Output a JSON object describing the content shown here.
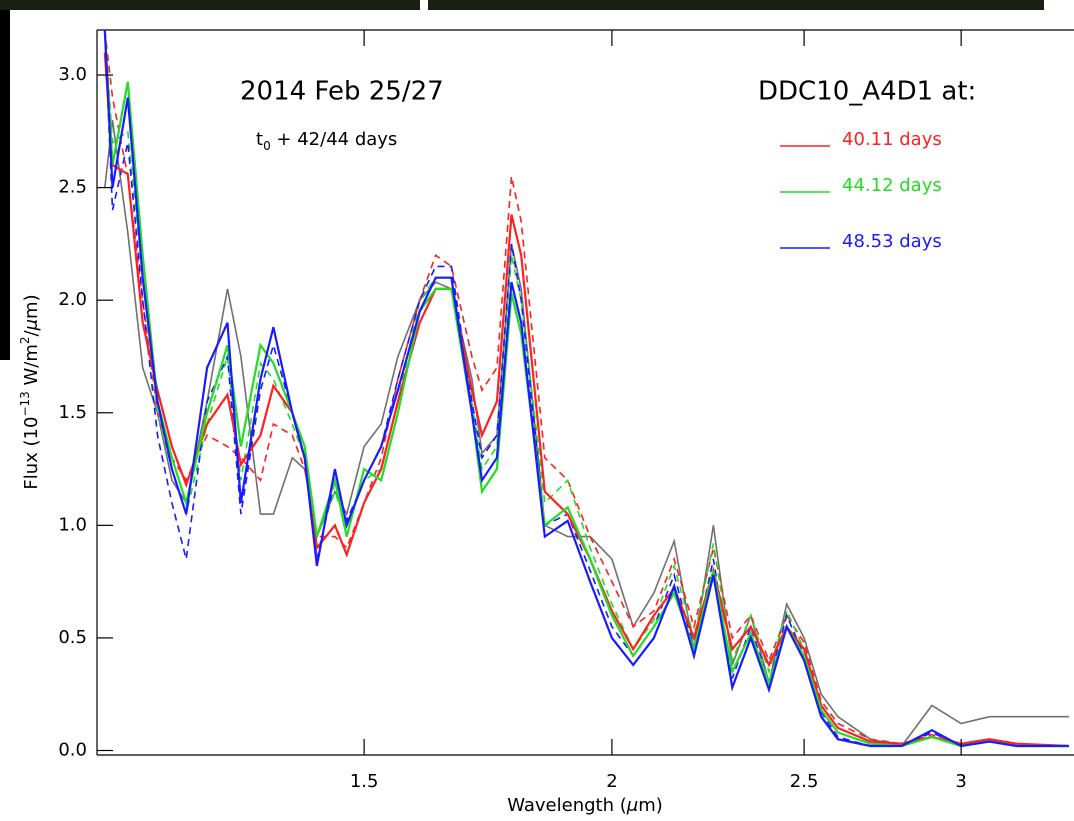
{
  "chart_data": {
    "type": "line",
    "title": "2014 Feb 25/27",
    "annotation": [
      "t",
      "0",
      " + 42/44 days"
    ],
    "legend_title": "DDC10_A4D1 at:",
    "xlabel": [
      "Wavelength (",
      "μ",
      "m)"
    ],
    "ylabel": [
      "Flux (10",
      "−13",
      " W/m",
      "2",
      "/",
      "μ",
      "m)"
    ],
    "xscale": "log",
    "xlim": [
      1.1,
      3.42
    ],
    "ylim": [
      -0.02,
      3.2
    ],
    "xticks": [
      1.5,
      2,
      2.5,
      3
    ],
    "yticks": [
      {
        "value": 0,
        "label": "0.0"
      },
      {
        "value": 0.5,
        "label": "0.5"
      },
      {
        "value": 1,
        "label": "1.0"
      },
      {
        "value": 1.5,
        "label": "1.5"
      },
      {
        "value": 2,
        "label": "2.0"
      },
      {
        "value": 2.5,
        "label": "2.5"
      },
      {
        "value": 3,
        "label": "3.0"
      }
    ],
    "x": [
      1.11,
      1.12,
      1.14,
      1.16,
      1.18,
      1.2,
      1.22,
      1.25,
      1.28,
      1.3,
      1.33,
      1.35,
      1.38,
      1.4,
      1.42,
      1.45,
      1.47,
      1.5,
      1.53,
      1.56,
      1.6,
      1.63,
      1.66,
      1.7,
      1.72,
      1.75,
      1.78,
      1.8,
      1.85,
      1.9,
      1.95,
      2.0,
      2.05,
      2.1,
      2.15,
      2.2,
      2.25,
      2.3,
      2.35,
      2.4,
      2.45,
      2.5,
      2.55,
      2.6,
      2.7,
      2.8,
      2.9,
      3.0,
      3.1,
      3.2,
      3.4
    ],
    "series": [
      {
        "color": "#707070",
        "dash": false,
        "values": [
          2.5,
          2.8,
          2.3,
          1.7,
          1.5,
          1.2,
          1.1,
          1.55,
          2.05,
          1.75,
          1.05,
          1.05,
          1.3,
          1.25,
          0.95,
          1.15,
          1.05,
          1.35,
          1.45,
          1.75,
          2.0,
          2.08,
          2.05,
          1.65,
          1.32,
          1.4,
          2.25,
          2.05,
          1.0,
          0.95,
          0.95,
          0.85,
          0.55,
          0.7,
          0.93,
          0.45,
          1.0,
          0.38,
          0.6,
          0.3,
          0.65,
          0.5,
          0.25,
          0.15,
          0.05,
          0.02,
          0.2,
          0.12,
          0.15,
          0.15,
          0.15
        ]
      },
      {
        "color": "#ff2020",
        "dash": true,
        "values": [
          3.2,
          2.9,
          2.55,
          2.0,
          1.5,
          1.3,
          1.2,
          1.4,
          1.35,
          1.3,
          1.2,
          1.45,
          1.4,
          1.25,
          0.95,
          0.95,
          0.9,
          1.1,
          1.3,
          1.65,
          2.0,
          2.2,
          2.15,
          1.75,
          1.6,
          1.7,
          2.55,
          2.35,
          1.3,
          1.2,
          0.95,
          0.75,
          0.55,
          0.62,
          0.85,
          0.55,
          0.9,
          0.5,
          0.6,
          0.4,
          0.6,
          0.48,
          0.22,
          0.12,
          0.05,
          0.03,
          0.07,
          0.03,
          0.05,
          0.03,
          0.02
        ]
      },
      {
        "color": "#22dd22",
        "dash": true,
        "values": [
          3.2,
          2.7,
          2.75,
          2.1,
          1.5,
          1.25,
          1.05,
          1.45,
          1.75,
          1.2,
          1.72,
          1.65,
          1.45,
          1.3,
          0.95,
          1.15,
          1.0,
          1.2,
          1.25,
          1.55,
          2.0,
          2.1,
          2.1,
          1.55,
          1.25,
          1.35,
          2.2,
          2.0,
          1.1,
          1.2,
          0.9,
          0.65,
          0.45,
          0.58,
          0.82,
          0.5,
          0.92,
          0.4,
          0.6,
          0.35,
          0.62,
          0.45,
          0.2,
          0.1,
          0.04,
          0.02,
          0.06,
          0.02,
          0.04,
          0.02,
          0.02
        ]
      },
      {
        "color": "#1a1aff",
        "dash": true,
        "values": [
          3.2,
          2.4,
          2.7,
          2.0,
          1.4,
          1.1,
          0.85,
          1.55,
          1.75,
          1.05,
          1.6,
          1.8,
          1.5,
          1.3,
          0.85,
          1.2,
          1.02,
          1.2,
          1.35,
          1.65,
          2.0,
          2.15,
          2.15,
          1.55,
          1.3,
          1.4,
          2.25,
          2.0,
          1.0,
          1.05,
          0.8,
          0.55,
          0.42,
          0.55,
          0.78,
          0.45,
          0.85,
          0.32,
          0.55,
          0.3,
          0.6,
          0.42,
          0.17,
          0.06,
          0.02,
          0.02,
          0.08,
          0.02,
          0.04,
          0.02,
          0.02
        ]
      },
      {
        "name": "40.11 days",
        "color": "#ff2020",
        "dash": false,
        "values": [
          3.1,
          2.6,
          2.56,
          1.9,
          1.6,
          1.35,
          1.18,
          1.45,
          1.58,
          1.27,
          1.4,
          1.62,
          1.5,
          1.3,
          0.9,
          1.0,
          0.87,
          1.1,
          1.25,
          1.55,
          1.9,
          2.05,
          2.05,
          1.6,
          1.4,
          1.55,
          2.38,
          2.2,
          1.15,
          1.05,
          0.85,
          0.62,
          0.45,
          0.6,
          0.72,
          0.5,
          0.8,
          0.45,
          0.55,
          0.38,
          0.55,
          0.45,
          0.2,
          0.1,
          0.04,
          0.03,
          0.06,
          0.03,
          0.05,
          0.03,
          0.02
        ]
      },
      {
        "name": "44.12 days",
        "color": "#22dd22",
        "dash": false,
        "values": [
          3.2,
          2.6,
          2.97,
          2.2,
          1.55,
          1.3,
          1.1,
          1.5,
          1.8,
          1.35,
          1.8,
          1.72,
          1.5,
          1.35,
          0.95,
          1.2,
          0.95,
          1.25,
          1.2,
          1.5,
          1.95,
          2.05,
          2.05,
          1.5,
          1.15,
          1.25,
          2.03,
          1.85,
          1.0,
          1.08,
          0.85,
          0.6,
          0.42,
          0.55,
          0.7,
          0.45,
          0.8,
          0.35,
          0.52,
          0.3,
          0.55,
          0.42,
          0.18,
          0.08,
          0.03,
          0.02,
          0.06,
          0.02,
          0.04,
          0.02,
          0.02
        ]
      },
      {
        "name": "48.53 days",
        "color": "#1a1aff",
        "dash": false,
        "values": [
          3.2,
          2.5,
          2.9,
          2.1,
          1.55,
          1.25,
          1.05,
          1.7,
          1.9,
          1.1,
          1.65,
          1.88,
          1.5,
          1.3,
          0.82,
          1.25,
          1.0,
          1.2,
          1.35,
          1.6,
          1.95,
          2.1,
          2.1,
          1.5,
          1.2,
          1.3,
          2.08,
          1.9,
          0.95,
          1.02,
          0.75,
          0.5,
          0.38,
          0.5,
          0.73,
          0.42,
          0.78,
          0.28,
          0.5,
          0.27,
          0.55,
          0.4,
          0.15,
          0.05,
          0.02,
          0.02,
          0.09,
          0.02,
          0.04,
          0.02,
          0.02
        ]
      }
    ]
  }
}
